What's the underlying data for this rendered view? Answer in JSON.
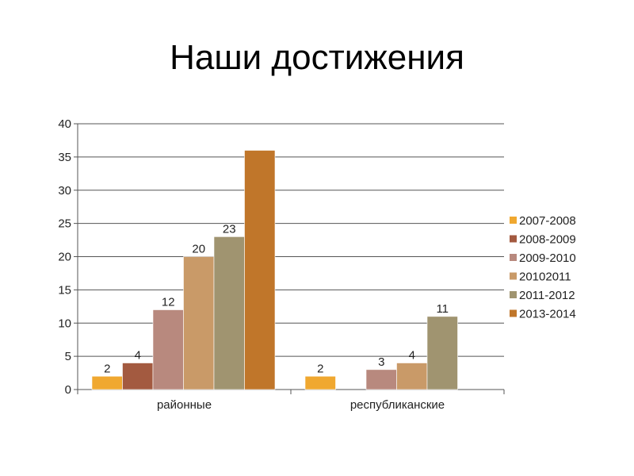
{
  "title": "Наши достижения",
  "chart_data": {
    "type": "bar",
    "categories": [
      "районные",
      "республиканские"
    ],
    "series": [
      {
        "name": "2007-2008",
        "values": [
          2,
          2
        ],
        "labels": [
          "2",
          "2"
        ],
        "color": "#f0a830"
      },
      {
        "name": "2008-2009",
        "values": [
          4,
          0
        ],
        "labels": [
          "4",
          ""
        ],
        "color": "#a35a40"
      },
      {
        "name": "2009-2010",
        "values": [
          12,
          3
        ],
        "labels": [
          "12",
          "3"
        ],
        "color": "#b8897e"
      },
      {
        "name": "20102011",
        "values": [
          20,
          4
        ],
        "labels": [
          "20",
          "4"
        ],
        "color": "#c99a68"
      },
      {
        "name": "2011-2012",
        "values": [
          23,
          11
        ],
        "labels": [
          "23",
          "11"
        ],
        "color": "#a09470"
      },
      {
        "name": "2013-2014",
        "values": [
          36,
          0
        ],
        "labels": [
          "",
          ""
        ],
        "color": "#c0762a"
      }
    ],
    "yticks": [
      "0",
      "5",
      "10",
      "15",
      "20",
      "25",
      "30",
      "35",
      "40"
    ],
    "ylim": [
      0,
      40
    ],
    "grid": true,
    "legend": "right"
  }
}
